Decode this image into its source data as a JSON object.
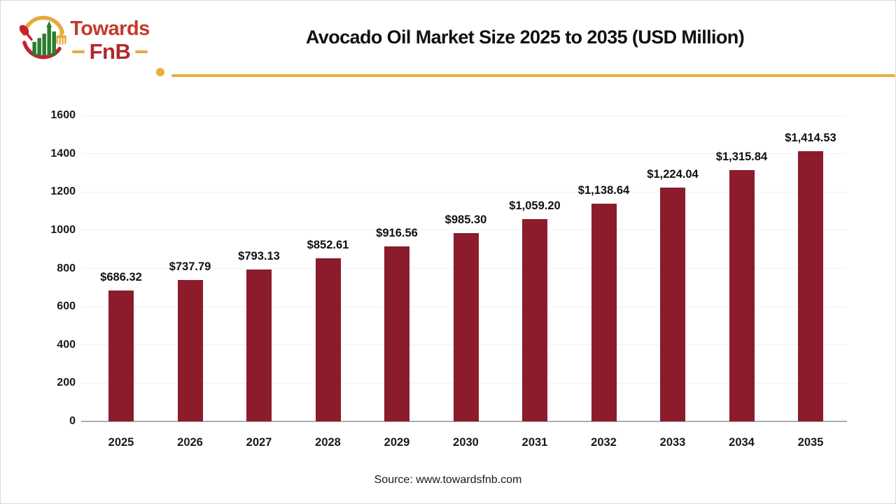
{
  "logo": {
    "brand_top": "Towards",
    "brand_bottom": "FnB",
    "colors": {
      "red": "#c5392a",
      "dark_red": "#b2272e",
      "gold": "#e8a83c",
      "green": "#2a7d2e",
      "arc_red": "#c2232e"
    }
  },
  "header": {
    "title": "Avocado Oil Market Size 2025 to 2035 (USD Million)",
    "divider_color": "#e8b13c"
  },
  "chart_data": {
    "type": "bar",
    "title": "Avocado Oil Market Size 2025 to 2035 (USD Million)",
    "categories": [
      "2025",
      "2026",
      "2027",
      "2028",
      "2029",
      "2030",
      "2031",
      "2032",
      "2033",
      "2034",
      "2035"
    ],
    "values": [
      686.32,
      737.79,
      793.13,
      852.61,
      916.56,
      985.3,
      1059.2,
      1138.64,
      1224.04,
      1315.84,
      1414.53
    ],
    "value_labels": [
      "$686.32",
      "$737.79",
      "$793.13",
      "$852.61",
      "$916.56",
      "$985.30",
      "$1,059.20",
      "$1,138.64",
      "$1,224.04",
      "$1,315.84",
      "$1,414.53"
    ],
    "xlabel": "",
    "ylabel": "",
    "ylim": [
      0,
      1600
    ],
    "yticks": [
      0,
      200,
      400,
      600,
      800,
      1000,
      1200,
      1400,
      1600
    ],
    "grid": true,
    "legend": false,
    "bar_color": "#8c1b2b",
    "gridline_color": "#f1f1f1",
    "axis_color": "#adadad"
  },
  "footer": {
    "source": "Source: www.towardsfnb.com"
  }
}
